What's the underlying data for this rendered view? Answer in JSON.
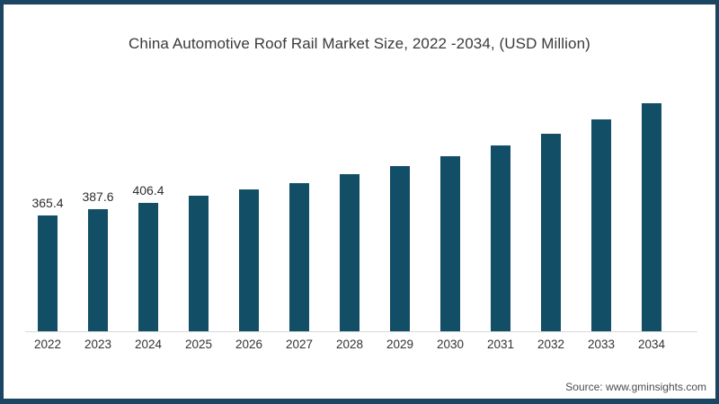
{
  "title": "China Automotive Roof Rail Market Size, 2022 -2034, (USD Million)",
  "source_text": "Source: www.gminsights.com",
  "colors": {
    "bar": "#124e66",
    "frame_border": "#1a4664",
    "axis_line": "#d9d9d9",
    "title_text": "#3a3a3a",
    "label_text": "#2e2e2e"
  },
  "chart_data": {
    "type": "bar",
    "title": "China Automotive Roof Rail Market Size, 2022 -2034, (USD Million)",
    "categories": [
      "2022",
      "2023",
      "2024",
      "2025",
      "2026",
      "2027",
      "2028",
      "2029",
      "2030",
      "2031",
      "2032",
      "2033",
      "2034"
    ],
    "values": [
      365.4,
      387.6,
      406.4,
      428,
      450,
      470,
      496,
      524,
      554,
      588,
      626,
      670,
      723
    ],
    "data_labels": [
      "365.4",
      "387.6",
      "406.4",
      "",
      "",
      "",
      "",
      "",
      "",
      "",
      "",
      "",
      ""
    ],
    "xlabel": "",
    "ylabel": "",
    "ylim": [
      0,
      760
    ],
    "grid": false,
    "legend": false,
    "bar_color": "#124e66",
    "layout": "single series, no y-axis shown, data labels only on first three bars, x-axis baseline line only"
  }
}
